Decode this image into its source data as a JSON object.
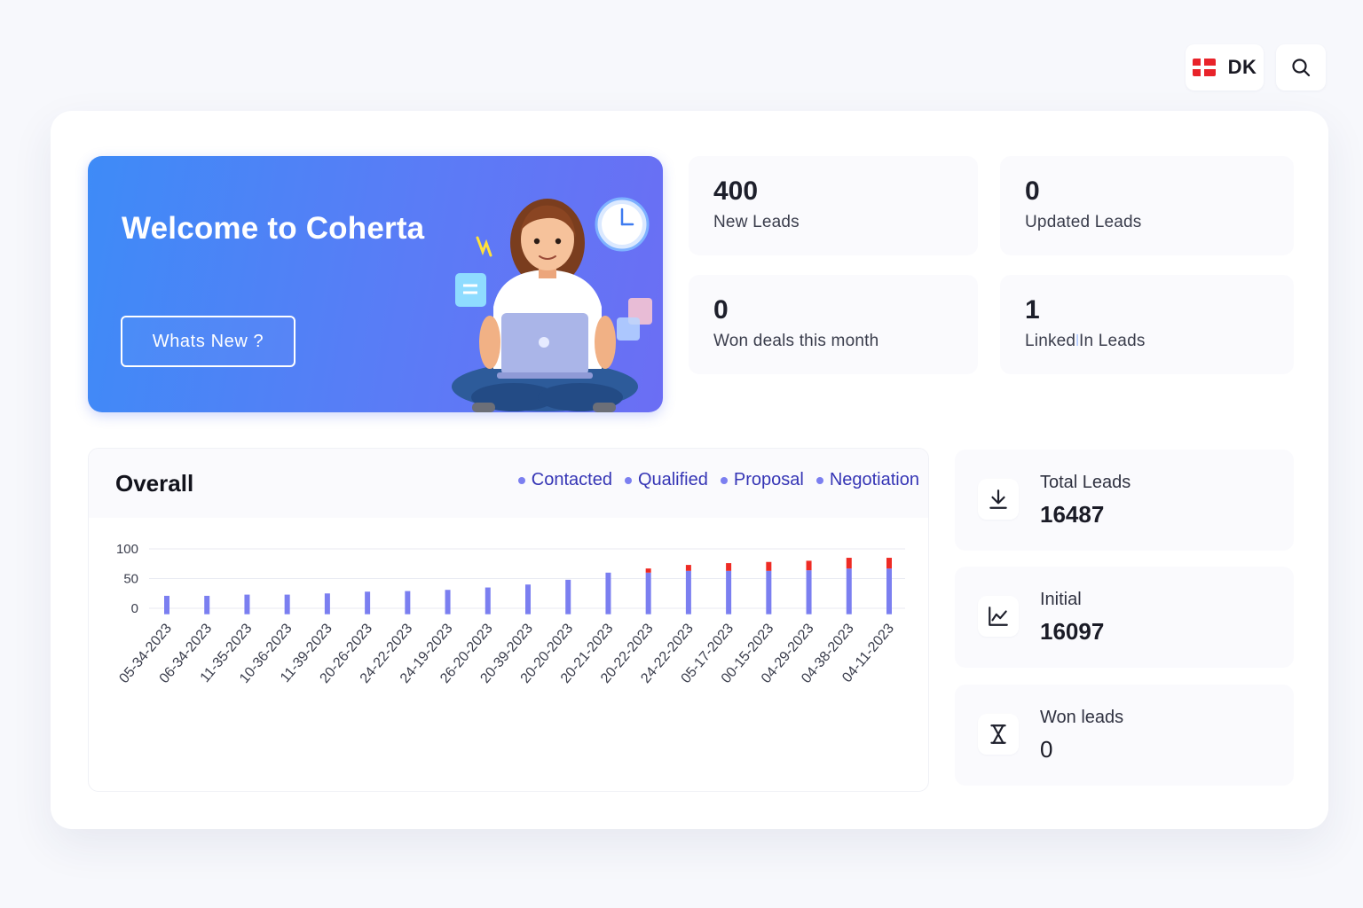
{
  "topbar": {
    "language_code": "DK",
    "flag_icon": "denmark-flag-icon",
    "search_icon": "search-icon"
  },
  "welcome": {
    "title": "Welcome to Coherta",
    "button_label": "Whats New ?",
    "illustration": "woman-with-laptop-illustration"
  },
  "stats": [
    {
      "value": "400",
      "label": "New Leads"
    },
    {
      "value": "0",
      "label": "Updated Leads"
    },
    {
      "value": "0",
      "label": "Won deals this month"
    },
    {
      "value": "1",
      "label_pre": "Linked",
      "label_post": "In Leads"
    }
  ],
  "metrics": [
    {
      "label": "Total Leads",
      "value": "16487",
      "icon": "download-icon"
    },
    {
      "label": "Initial",
      "value": "16097",
      "icon": "line-chart-icon"
    },
    {
      "label": "Won leads",
      "value": "0",
      "icon": "hourglass-icon"
    }
  ],
  "colors": {
    "accent_primary": "#7b7ff0",
    "accent_secondary": "#ee2b24",
    "banner_start": "#3e8bf7",
    "banner_end": "#6b6ef4",
    "legend_text": "#3535b5"
  },
  "chart": {
    "title": "Overall",
    "legend": [
      "Contacted",
      "Qualified",
      "Proposal",
      "Negotiation"
    ]
  },
  "chart_data": {
    "type": "bar",
    "stacked": true,
    "title": "Overall",
    "categories": [
      "05-34-2023",
      "06-34-2023",
      "11-35-2023",
      "10-36-2023",
      "11-39-2023",
      "20-26-2023",
      "24-22-2023",
      "24-19-2023",
      "26-20-2023",
      "20-39-2023",
      "20-20-2023",
      "20-21-2023",
      "20-22-2023",
      "24-22-2023",
      "05-17-2023",
      "00-15-2023",
      "04-29-2023",
      "04-38-2023",
      "04-11-2023"
    ],
    "series": [
      {
        "values": [
          21,
          21,
          23,
          23,
          25,
          28,
          29,
          31,
          35,
          40,
          48,
          60,
          60,
          63,
          63,
          63,
          64,
          67,
          67
        ],
        "color": "#7b7ff0"
      },
      {
        "values": [
          0,
          0,
          0,
          0,
          0,
          0,
          0,
          0,
          0,
          0,
          0,
          0,
          7,
          10,
          13,
          15,
          16,
          18,
          18
        ],
        "color": "#ee2b24"
      }
    ],
    "yticks": [
      0,
      50,
      100
    ],
    "ylim": [
      -10,
      100
    ],
    "grid": true,
    "legend_position": "top-right"
  }
}
